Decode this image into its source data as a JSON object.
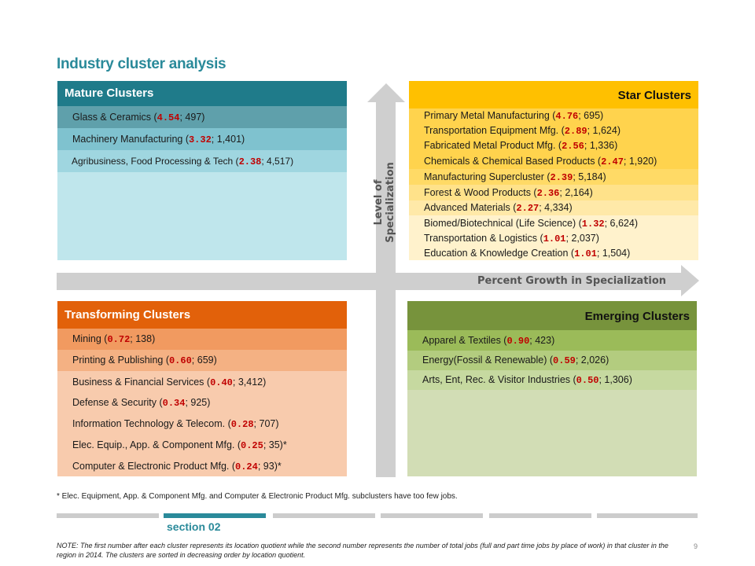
{
  "title": "Industry cluster analysis",
  "axes": {
    "y_label": "Level of Specialization",
    "x_label": "Percent Growth in Specialization"
  },
  "colors": {
    "mature_head": "#1f7b8a",
    "star_head": "#ffc000",
    "transform_head": "#e2610a",
    "emerge_head": "#77933c"
  },
  "quadrants": {
    "mature": {
      "heading": "Mature Clusters",
      "items": [
        {
          "name": "Glass & Ceramics (",
          "lq": "4.54",
          "jobs": "; 497)"
        },
        {
          "name": "Machinery Manufacturing (",
          "lq": "3.32",
          "jobs": "; 1,401)"
        },
        {
          "name": "Agribusiness, Food Processing & Tech (",
          "lq": "2.38",
          "jobs": "; 4,517)"
        }
      ]
    },
    "star": {
      "heading": "Star Clusters",
      "items": [
        {
          "name": "Primary Metal Manufacturing (",
          "lq": "4.76",
          "jobs": "; 695)"
        },
        {
          "name": "Transportation Equipment Mfg. (",
          "lq": "2.89",
          "jobs": "; 1,624)"
        },
        {
          "name": "Fabricated Metal Product Mfg. (",
          "lq": "2.56",
          "jobs": "; 1,336)"
        },
        {
          "name": "Chemicals & Chemical Based Products (",
          "lq": "2.47",
          "jobs": "; 1,920)"
        },
        {
          "name": "Manufacturing Supercluster (",
          "lq": "2.39",
          "jobs": "; 5,184)"
        },
        {
          "name": "Forest & Wood Products (",
          "lq": "2.36",
          "jobs": "; 2,164)"
        },
        {
          "name": "Advanced Materials (",
          "lq": "2.27",
          "jobs": "; 4,334)"
        },
        {
          "name": "Biomed/Biotechnical (Life Science) (",
          "lq": "1.32",
          "jobs": "; 6,624)"
        },
        {
          "name": "Transportation & Logistics (",
          "lq": "1.01",
          "jobs": "; 2,037)"
        },
        {
          "name": "Education & Knowledge Creation (",
          "lq": "1.01",
          "jobs": "; 1,504)"
        }
      ]
    },
    "transforming": {
      "heading": "Transforming Clusters",
      "items": [
        {
          "name": "Mining (",
          "lq": "0.72",
          "jobs": "; 138)"
        },
        {
          "name": "Printing & Publishing (",
          "lq": "0.60",
          "jobs": "; 659)"
        },
        {
          "name": "Business & Financial Services (",
          "lq": "0.40",
          "jobs": "; 3,412)"
        },
        {
          "name": "Defense & Security (",
          "lq": "0.34",
          "jobs": "; 925)"
        },
        {
          "name": "Information Technology & Telecom. (",
          "lq": "0.28",
          "jobs": "; 707)"
        },
        {
          "name": "Elec. Equip., App. & Component Mfg. (",
          "lq": "0.25",
          "jobs": "; 35)*"
        },
        {
          "name": "Computer & Electronic Product Mfg. (",
          "lq": "0.24",
          "jobs": "; 93)*"
        }
      ]
    },
    "emerging": {
      "heading": "Emerging Clusters",
      "items": [
        {
          "name": "Apparel & Textiles (",
          "lq": "0.90",
          "jobs": "; 423)"
        },
        {
          "name": "Energy(Fossil & Renewable) (",
          "lq": "0.59",
          "jobs": "; 2,026)"
        },
        {
          "name": "Arts, Ent, Rec. & Visitor Industries (",
          "lq": "0.50",
          "jobs": "; 1,306)"
        }
      ]
    }
  },
  "footnote": "* Elec. Equipment, App. & Component Mfg. and Computer & Electronic Product Mfg. subclusters have too few jobs.",
  "section_label": "section 02",
  "note": "NOTE: The first number after each cluster represents its location quotient while the second number represents the number of total jobs (full and part time jobs by place of work) in that cluster in the region in 2014. The clusters are sorted in decreasing order by location quotient.",
  "page_number": "9"
}
